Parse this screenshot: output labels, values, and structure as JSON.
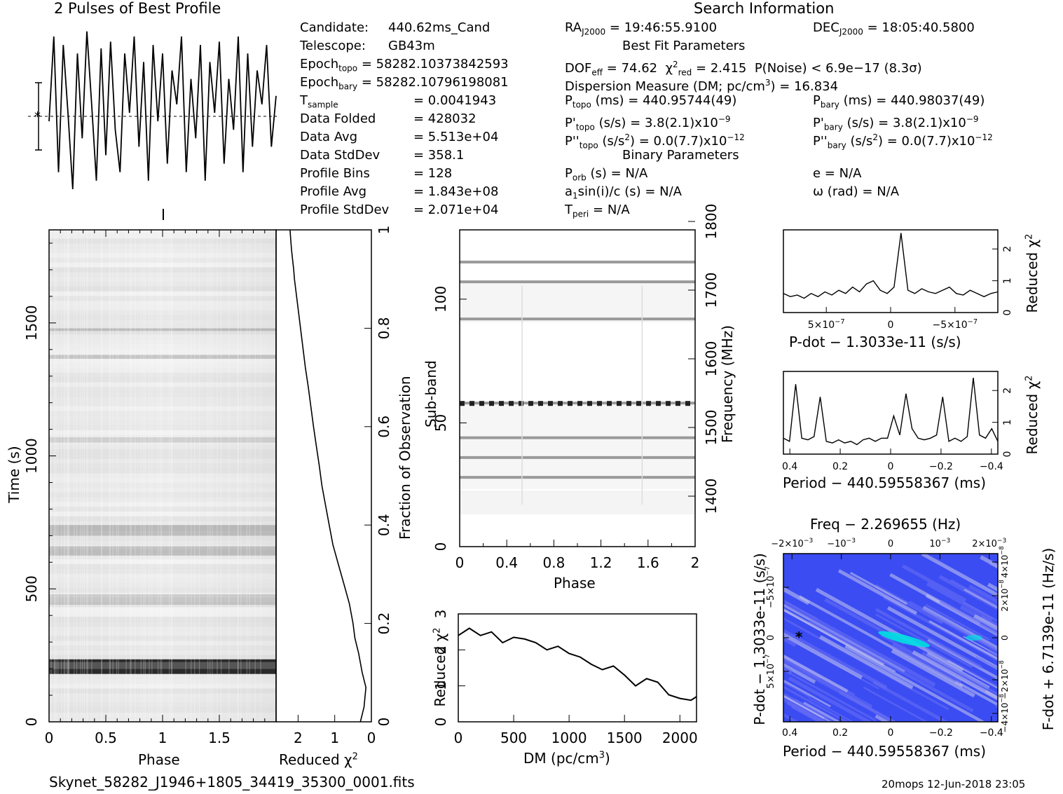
{
  "header": {
    "profile_title": "2 Pulses of Best Profile",
    "search_title": "Search Information"
  },
  "candidate_info": [
    {
      "label": "Candidate:",
      "value": "440.62ms_Cand"
    },
    {
      "label": "Telescope:",
      "value": "GB43m"
    },
    {
      "label": "Epoch",
      "label_sub": "topo",
      "value": "= 58282.10373842593"
    },
    {
      "label": "Epoch",
      "label_sub": "bary",
      "value": "= 58282.10796198081"
    },
    {
      "label": "T",
      "label_sub": "sample",
      "value": "=   0.0041943"
    },
    {
      "label": "Data Folded",
      "value": "=   428032"
    },
    {
      "label": "Data Avg",
      "value": "=   5.513e+04"
    },
    {
      "label": "Data StdDev",
      "value": "=   358.1"
    },
    {
      "label": "Profile Bins",
      "value": "=   128"
    },
    {
      "label": "Profile Avg",
      "value": "=   1.843e+08"
    },
    {
      "label": "Profile StdDev",
      "value": "=   2.071e+04"
    }
  ],
  "search_info": {
    "ra": "RA",
    "ra_sub": "J2000",
    "ra_value": "= 19:46:55.9100",
    "dec": "DEC",
    "dec_sub": "J2000",
    "dec_value": "= 18:05:40.5800",
    "best_fit_title": "Best Fit Parameters",
    "dof": "DOF",
    "dof_sub": "eff",
    "dof_value": "= 74.62",
    "chi": "χ",
    "chi_sup": "2",
    "chi_sub": "red",
    "chi_value": "= 2.415",
    "pnoise": "P(Noise) < 6.9e−17   (8.3σ)",
    "dm_line_a": "Dispersion Measure (DM; pc/cm",
    "dm_line_sup": "3",
    "dm_line_b": ") = 16.834",
    "ptopo": "P",
    "ptopo_sub": "topo",
    "ptopo_value": "(ms) =  440.95744(49)",
    "pbary": "P",
    "pbary_sub": "bary",
    "pbary_value": "(ms) =  440.98037(49)",
    "pdtopo": "P'",
    "pdtopo_sub": "topo",
    "pdtopo_value": "(s/s) =  3.8(2.1)x10",
    "pdtopo_exp": "−9",
    "pdbary": "P'",
    "pdbary_sub": "bary",
    "pdbary_value": "(s/s) =  3.8(2.1)x10",
    "pdbary_exp": "−9",
    "pddtopo": "P''",
    "pddtopo_sub": "topo",
    "pddtopo_value": "(s/s",
    "pddtopo_value2": ") = 0.0(7.7)x10",
    "pddtopo_exp": "−12",
    "pddbary": "P''",
    "pddbary_sub": "bary",
    "pddbary_value": "(s/s",
    "pddbary_value2": ") = 0.0(7.7)x10",
    "pddbary_exp": "−12",
    "sq": "2",
    "binary_title": "Binary Parameters",
    "porb": "P",
    "porb_sub": "orb",
    "porb_value": "(s) = N/A",
    "e_value": "e = N/A",
    "a1": "a",
    "a1_sub": "1",
    "a1_value": "sin(i)/c (s) = N/A",
    "omega_value": "ω (rad) = N/A",
    "tperi": "T",
    "tperi_sub": "peri",
    "tperi_value": "= N/A"
  },
  "footer": {
    "filename": "Skynet_58282_J1946+1805_34419_35300_0001.fits",
    "stamp": "20mops 12-Jun-2018 23:05"
  },
  "colors": {
    "grid_dark": "#303030",
    "freq_map_base": "#2a3cf0",
    "freq_map_hot": "#00e0e0"
  },
  "chart_data": [
    {
      "type": "line",
      "id": "pulse-profile",
      "title": "2 Pulses of Best Profile",
      "xlim": [
        0,
        2
      ],
      "values": [
        0.45,
        0.95,
        0.15,
        0.9,
        0.5,
        0.05,
        0.85,
        0.35,
        0.98,
        0.55,
        0.1,
        0.88,
        0.25,
        0.92,
        0.4,
        0.15,
        0.85,
        0.5,
        0.95,
        0.3,
        0.8,
        0.1,
        0.9,
        0.45,
        0.85,
        0.2,
        0.75,
        0.55,
        0.95,
        0.15,
        0.7,
        0.35,
        0.9,
        0.1,
        0.8,
        0.5,
        0.92,
        0.2,
        0.7,
        0.4,
        0.95,
        0.15,
        0.85,
        0.3,
        0.75,
        0.55,
        0.9,
        0.3,
        0.6
      ]
    },
    {
      "type": "heatmap",
      "id": "time-phase",
      "xlabel": "Phase",
      "ylabel": "Time (s)",
      "xlim": [
        0,
        2
      ],
      "ylim": [
        0,
        1850
      ],
      "xticks": [
        "0",
        "0.5",
        "1",
        "1.5"
      ],
      "yticks": [
        "0",
        "500",
        "1000",
        "1500"
      ]
    },
    {
      "type": "line",
      "id": "reduced-chi-fraction",
      "xlabel": "Reduced χ",
      "xlabel_sup": "2",
      "ylabel": "Fraction of Observation",
      "xlim": [
        2.6,
        0
      ],
      "ylim": [
        0,
        1
      ],
      "xticks": [
        "2",
        "1",
        "0"
      ],
      "yticks": [
        "0",
        "0.2",
        "0.4",
        "0.6",
        "0.8",
        "1"
      ],
      "x": [
        0.3,
        0.2,
        0.15,
        0.25,
        0.35,
        0.45,
        0.5,
        0.6,
        0.75,
        0.9,
        1.05,
        1.15,
        1.25,
        1.35,
        1.42,
        1.5,
        1.58,
        1.65,
        1.72,
        1.8,
        1.85,
        1.9,
        1.95,
        2.0,
        2.05,
        2.1,
        2.12,
        2.15,
        2.18,
        2.2,
        2.22
      ],
      "y": [
        0,
        0.03,
        0.07,
        0.1,
        0.14,
        0.17,
        0.2,
        0.24,
        0.28,
        0.32,
        0.36,
        0.4,
        0.44,
        0.48,
        0.52,
        0.56,
        0.6,
        0.64,
        0.68,
        0.72,
        0.75,
        0.78,
        0.81,
        0.84,
        0.87,
        0.9,
        0.92,
        0.94,
        0.96,
        0.98,
        1.0
      ]
    },
    {
      "type": "heatmap",
      "id": "subband-phase",
      "xlabel": "Phase",
      "ylabel": "Sub-band",
      "y2label": "Frequency (MHz)",
      "xlim": [
        0,
        2
      ],
      "ylim": [
        0,
        128
      ],
      "xticks": [
        "0",
        "0.4",
        "0.8",
        "1.2",
        "1.6",
        "2"
      ],
      "yticks": [
        "0",
        "50",
        "100"
      ],
      "y2ticks": [
        "1400",
        "1500",
        "1600",
        "1700",
        "1800"
      ],
      "bright_subbands": [
        115,
        107,
        92,
        58,
        44,
        36,
        28
      ]
    },
    {
      "type": "line",
      "id": "dm-curve",
      "xlabel": "DM (pc/cm",
      "xlabel_sup": "3",
      "xlabel_end": ")",
      "ylabel": "Reduced χ",
      "ylabel_sup": "2",
      "xlim": [
        0,
        2150
      ],
      "ylim": [
        0,
        3
      ],
      "xticks": [
        "0",
        "500",
        "1000",
        "1500",
        "2000"
      ],
      "yticks": [
        "0",
        "1",
        "2",
        "3"
      ],
      "x": [
        0,
        100,
        200,
        300,
        400,
        500,
        600,
        700,
        800,
        900,
        1000,
        1100,
        1200,
        1300,
        1400,
        1500,
        1600,
        1700,
        1800,
        1900,
        2000,
        2100,
        2150
      ],
      "y": [
        2.4,
        2.6,
        2.4,
        2.5,
        2.2,
        2.35,
        2.3,
        2.2,
        2.0,
        2.1,
        1.9,
        1.8,
        1.6,
        1.45,
        1.55,
        1.3,
        1.0,
        1.2,
        1.1,
        0.75,
        0.65,
        0.6,
        0.7
      ]
    },
    {
      "type": "line",
      "id": "pdot-curve",
      "xlabel": "P-dot − 1.3033e-11 (s/s)",
      "ylabel": "Reduced χ",
      "ylabel_sup": "2",
      "xticks": [
        "5×10",
        "0",
        "−5×10"
      ],
      "xtick_exp": "−7",
      "yticks": [
        "0",
        "1",
        "2"
      ],
      "ylim": [
        0,
        2.6
      ],
      "values": [
        0.6,
        0.5,
        0.55,
        0.45,
        0.6,
        0.5,
        0.65,
        0.55,
        0.7,
        0.6,
        0.8,
        0.65,
        0.9,
        1.0,
        0.7,
        0.6,
        0.8,
        2.5,
        0.7,
        0.6,
        0.75,
        0.65,
        0.6,
        0.7,
        0.8,
        0.6,
        0.55,
        0.7,
        0.6,
        0.5,
        0.6,
        0.65
      ]
    },
    {
      "type": "line",
      "id": "period-curve",
      "xlabel": "Period − 440.59558367 (ms)",
      "ylabel": "Reduced χ",
      "ylabel_sup": "2",
      "xticks": [
        "0.4",
        "0.2",
        "0",
        "−0.2",
        "−0.4"
      ],
      "yticks": [
        "0",
        "1",
        "2"
      ],
      "ylim": [
        0,
        2.6
      ],
      "values": [
        0.5,
        0.4,
        2.2,
        0.5,
        0.45,
        0.55,
        1.8,
        0.4,
        0.35,
        0.45,
        0.35,
        0.4,
        0.3,
        0.45,
        0.5,
        0.4,
        0.5,
        0.5,
        1.2,
        0.6,
        1.9,
        0.8,
        0.5,
        0.45,
        0.5,
        0.6,
        1.8,
        0.4,
        0.5,
        0.4,
        0.55,
        2.4,
        0.6,
        0.5,
        0.8,
        0.4
      ]
    },
    {
      "type": "heatmap",
      "id": "period-pdot-map",
      "title": "Freq − 2.269655 (Hz)",
      "xlabel": "Period − 440.59558367 (ms)",
      "ylabel": "P-dot − 1.3033e-11 (s/s)",
      "y2label": "F-dot + 6.7139e-11 (Hz/s)",
      "xticks": [
        "0.4",
        "0.2",
        "0",
        "−0.2",
        "−0.4"
      ],
      "x2ticks": [
        "−2×10",
        "−10",
        "0",
        "10",
        "2×10"
      ],
      "x2tick_exp": "−3",
      "yticks": [
        "5×10",
        "0",
        "−5×10"
      ],
      "ytick_exp": "−7",
      "y2ticks": [
        "−4×10",
        "−2×10",
        "0",
        "2×10",
        "4×10"
      ],
      "y2tick_exp": "−8"
    }
  ]
}
